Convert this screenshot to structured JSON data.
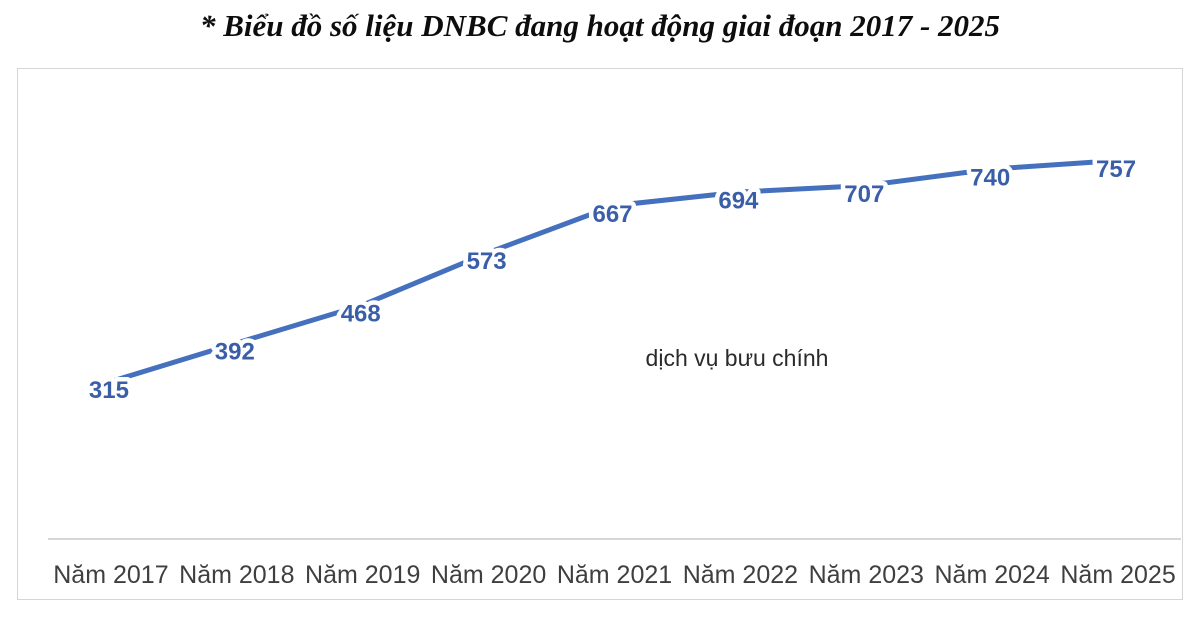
{
  "page": {
    "title": "* Biểu đồ số liệu DNBC đang hoạt động giai đoạn 2017 - 2025"
  },
  "chart_data": {
    "type": "line",
    "title": "* Biểu đồ số liệu DNBC đang hoạt động giai đoạn 2017 - 2025",
    "series_label": "dịch vụ bưu chính",
    "categories": [
      "Năm 2017",
      "Năm 2018",
      "Năm 2019",
      "Năm 2020",
      "Năm 2021",
      "Năm 2022",
      "Năm 2023",
      "Năm 2024",
      "Năm 2025"
    ],
    "series": [
      {
        "name": "dịch vụ bưu chính",
        "values": [
          315,
          392,
          468,
          573,
          667,
          694,
          707,
          740,
          757
        ]
      }
    ],
    "xlabel": "",
    "ylabel": "",
    "ylim": [
      0,
      800
    ],
    "grid": false,
    "data_labels": true,
    "legend_position": "inside-plot-center",
    "colors": {
      "line": "#4470be",
      "data_label": "#3a5fa8",
      "axis_line": "#d6d6d6",
      "axis_label": "#3f3f3f",
      "series_label": "#2a2a2a",
      "frame_border": "#d6d6d6"
    }
  }
}
